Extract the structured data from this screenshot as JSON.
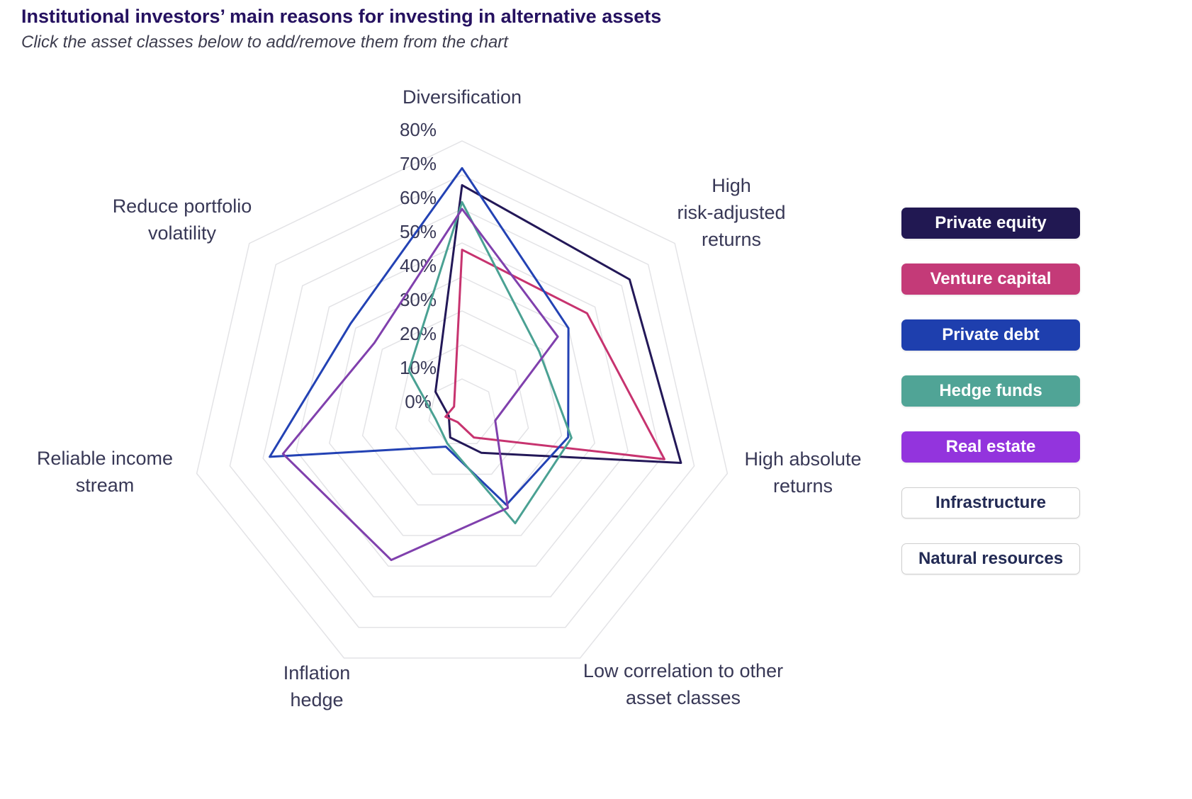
{
  "header": {
    "title": "Institutional investors’ main reasons for investing in alternative assets",
    "subtitle": "Click the asset classes below to add/remove them from the chart"
  },
  "chart_data": {
    "type": "radar",
    "axis_max": 80,
    "axis_unit": "%",
    "tick_labels": [
      "0%",
      "10%",
      "20%",
      "30%",
      "40%",
      "50%",
      "60%",
      "70%",
      "80%"
    ],
    "grid_color": "#e3e3e6",
    "categories": [
      "Diversification",
      "High risk-adjusted returns",
      "High absolute returns",
      "Low correlation to other asset classes",
      "Inflation hedge",
      "Reliable income stream",
      "Reduce portfolio volatility"
    ],
    "axis_label_lines": [
      [
        "Diversification"
      ],
      [
        "High",
        "risk-adjusted",
        "returns"
      ],
      [
        "High absolute",
        "returns"
      ],
      [
        "Low correlation to other",
        "asset classes"
      ],
      [
        "Inflation",
        "hedge"
      ],
      [
        "Reliable income",
        "stream"
      ],
      [
        "Reduce portfolio",
        "volatility"
      ]
    ],
    "series": [
      {
        "name": "Private equity",
        "active": true,
        "line_color": "#231858",
        "button_color": "#211852",
        "values": [
          67,
          63,
          66,
          13,
          8,
          4,
          10
        ]
      },
      {
        "name": "Venture capital",
        "active": true,
        "line_color": "#c7336f",
        "button_color": "#c43a78",
        "values": [
          48,
          47,
          61,
          8,
          3,
          5,
          3
        ]
      },
      {
        "name": "Private debt",
        "active": true,
        "line_color": "#2342b4",
        "button_color": "#1e3fae",
        "values": [
          72,
          40,
          32,
          30,
          11,
          58,
          42
        ]
      },
      {
        "name": "Hedge funds",
        "active": true,
        "line_color": "#4aa193",
        "button_color": "#50a496",
        "values": [
          62,
          29,
          33,
          36,
          10,
          8,
          20
        ]
      },
      {
        "name": "Real estate",
        "active": true,
        "line_color": "#8040ad",
        "button_color": "#9334dd",
        "values": [
          60,
          36,
          10,
          31,
          48,
          54,
          33
        ]
      },
      {
        "name": "Infrastructure",
        "active": false,
        "button_color": "#ffffff"
      },
      {
        "name": "Natural resources",
        "active": false,
        "button_color": "#ffffff"
      }
    ],
    "legend": {
      "active_text_color": "#ffffff",
      "inactive_text_color": "#222a54",
      "inactive_border_color": "#cfcfcf"
    }
  }
}
